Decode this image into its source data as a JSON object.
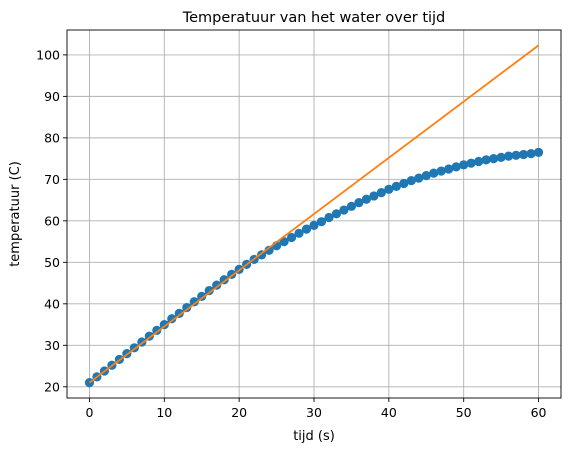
{
  "chart_data": {
    "type": "line",
    "title": "Temperatuur van het water over tijd",
    "xlabel": "tijd (s)",
    "ylabel": "temperatuur (C)",
    "xlim": [
      -3,
      63
    ],
    "ylim": [
      17.3,
      106
    ],
    "xticks": [
      0,
      10,
      20,
      30,
      40,
      50,
      60
    ],
    "yticks": [
      20,
      30,
      40,
      50,
      60,
      70,
      80,
      90,
      100
    ],
    "grid": true,
    "series": [
      {
        "type": "scatter",
        "color": "#1f77b4",
        "x": [
          0,
          1,
          2,
          3,
          4,
          5,
          6,
          7,
          8,
          9,
          10,
          11,
          12,
          13,
          14,
          15,
          16,
          17,
          18,
          19,
          20,
          21,
          22,
          23,
          24,
          25,
          26,
          27,
          28,
          29,
          30,
          31,
          32,
          33,
          34,
          35,
          36,
          37,
          38,
          39,
          40,
          41,
          42,
          43,
          44,
          45,
          46,
          47,
          48,
          49,
          50,
          51,
          52,
          53,
          54,
          55,
          56,
          57,
          58,
          59,
          60
        ],
        "y": [
          21.0,
          22.4,
          23.8,
          25.2,
          26.6,
          28.0,
          29.4,
          30.8,
          32.2,
          33.6,
          35.0,
          36.4,
          37.7,
          39.1,
          40.5,
          41.8,
          43.2,
          44.5,
          45.8,
          47.1,
          48.3,
          49.5,
          50.7,
          51.8,
          52.9,
          54.0,
          55.0,
          56.0,
          57.0,
          58.0,
          58.9,
          59.8,
          60.8,
          61.7,
          62.6,
          63.5,
          64.4,
          65.2,
          66.0,
          66.8,
          67.6,
          68.3,
          69.0,
          69.7,
          70.3,
          70.9,
          71.5,
          72.0,
          72.5,
          73.0,
          73.5,
          73.9,
          74.3,
          74.7,
          75.0,
          75.3,
          75.6,
          75.8,
          76.0,
          76.2,
          76.5
        ]
      },
      {
        "type": "line",
        "color": "#ff7f0e",
        "x": [
          0,
          60
        ],
        "y": [
          21.0,
          102.3
        ]
      }
    ]
  }
}
